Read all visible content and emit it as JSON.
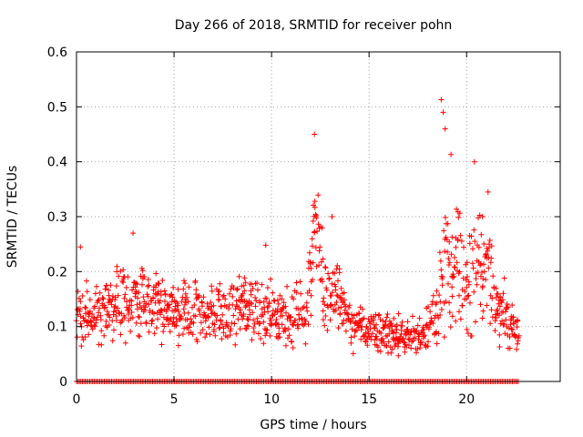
{
  "chart_data": {
    "type": "scatter",
    "title": "Day 266 of 2018, SRMTID for receiver pohn",
    "xlabel": "GPS time / hours",
    "ylabel": "SRMTID / TECUs",
    "xlim": [
      0,
      24.8
    ],
    "ylim": [
      0,
      0.6
    ],
    "xticks": [
      "0",
      "5",
      "10",
      "15",
      "20"
    ],
    "xtick_values": [
      0,
      5,
      10,
      15,
      20
    ],
    "yticks": [
      "0",
      "0.1",
      "0.2",
      "0.3",
      "0.4",
      "0.5",
      "0.6"
    ],
    "ytick_values": [
      0,
      0.1,
      0.2,
      0.3,
      0.4,
      0.5,
      0.6
    ],
    "grid": true,
    "marker": "+",
    "color": "#ff0000",
    "zero_line_range": [
      0,
      22.7
    ],
    "envelope": {
      "description": "median SRMTID level by hour, with typical spread and peak values",
      "hours": [
        0,
        1,
        2,
        3,
        4,
        5,
        6,
        7,
        8,
        9,
        10,
        11,
        11.8,
        12.3,
        12.8,
        13.3,
        14,
        15,
        16,
        17,
        17.8,
        18.5,
        19,
        19.5,
        20,
        20.5,
        21,
        21.5,
        22,
        22.7
      ],
      "median": [
        0.12,
        0.12,
        0.14,
        0.15,
        0.14,
        0.13,
        0.12,
        0.12,
        0.13,
        0.14,
        0.13,
        0.12,
        0.12,
        0.3,
        0.14,
        0.16,
        0.11,
        0.09,
        0.09,
        0.08,
        0.08,
        0.12,
        0.24,
        0.22,
        0.18,
        0.2,
        0.22,
        0.14,
        0.12,
        0.08
      ],
      "spread": [
        0.05,
        0.05,
        0.06,
        0.06,
        0.05,
        0.05,
        0.05,
        0.05,
        0.05,
        0.05,
        0.05,
        0.05,
        0.05,
        0.1,
        0.05,
        0.06,
        0.04,
        0.04,
        0.04,
        0.03,
        0.03,
        0.06,
        0.12,
        0.1,
        0.08,
        0.1,
        0.09,
        0.06,
        0.05,
        0.03
      ],
      "peaks": [
        {
          "x": 0.2,
          "y": 0.245
        },
        {
          "x": 2.9,
          "y": 0.27
        },
        {
          "x": 9.7,
          "y": 0.248
        },
        {
          "x": 12.2,
          "y": 0.45
        },
        {
          "x": 13.1,
          "y": 0.3
        },
        {
          "x": 18.7,
          "y": 0.513
        },
        {
          "x": 18.8,
          "y": 0.49
        },
        {
          "x": 18.9,
          "y": 0.46
        },
        {
          "x": 19.2,
          "y": 0.413
        },
        {
          "x": 20.4,
          "y": 0.4
        },
        {
          "x": 21.1,
          "y": 0.345
        }
      ]
    }
  }
}
